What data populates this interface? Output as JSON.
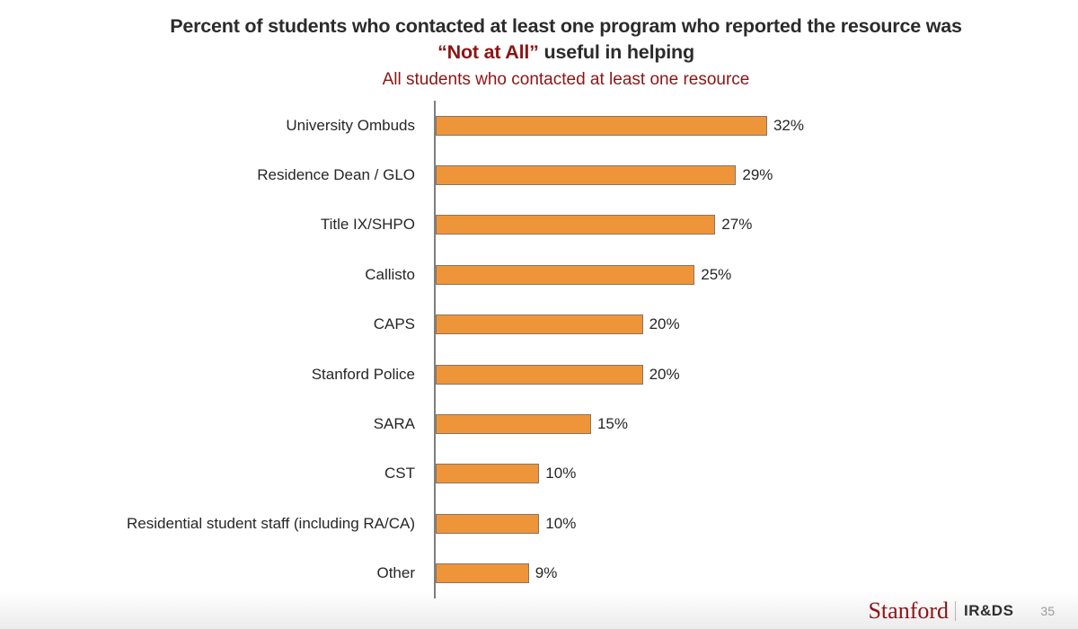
{
  "title": {
    "line1": "Percent of students who contacted at least one program who reported the resource was",
    "line2_accent": "“Not at All”",
    "line2_rest": " useful in helping"
  },
  "subtitle": "All students who contacted at least one resource",
  "chart_data": {
    "type": "bar",
    "orientation": "horizontal",
    "title": "Percent of students who contacted at least one program who reported the resource was “Not at All” useful in helping",
    "subtitle": "All students who contacted at least one resource",
    "categories": [
      "University Ombuds",
      "Residence Dean / GLO",
      "Title IX/SHPO",
      "Callisto",
      "CAPS",
      "Stanford Police",
      "SARA",
      "CST",
      "Residential student staff (including RA/CA)",
      "Other"
    ],
    "values": [
      32,
      29,
      27,
      25,
      20,
      20,
      15,
      10,
      10,
      9
    ],
    "value_labels": [
      "32%",
      "29%",
      "27%",
      "25%",
      "20%",
      "20%",
      "15%",
      "10%",
      "10%",
      "9%"
    ],
    "xlim": [
      0,
      35
    ],
    "grid": false,
    "legend": "none",
    "bar_color": "#EF9539",
    "bar_border_color": "#857568",
    "axis_color": "#7f7f7f"
  },
  "footer": {
    "brand": "Stanford",
    "dept": "IR&DS",
    "page": "35"
  },
  "colors": {
    "accent_red": "#8C1515",
    "text_dark": "#262626"
  }
}
